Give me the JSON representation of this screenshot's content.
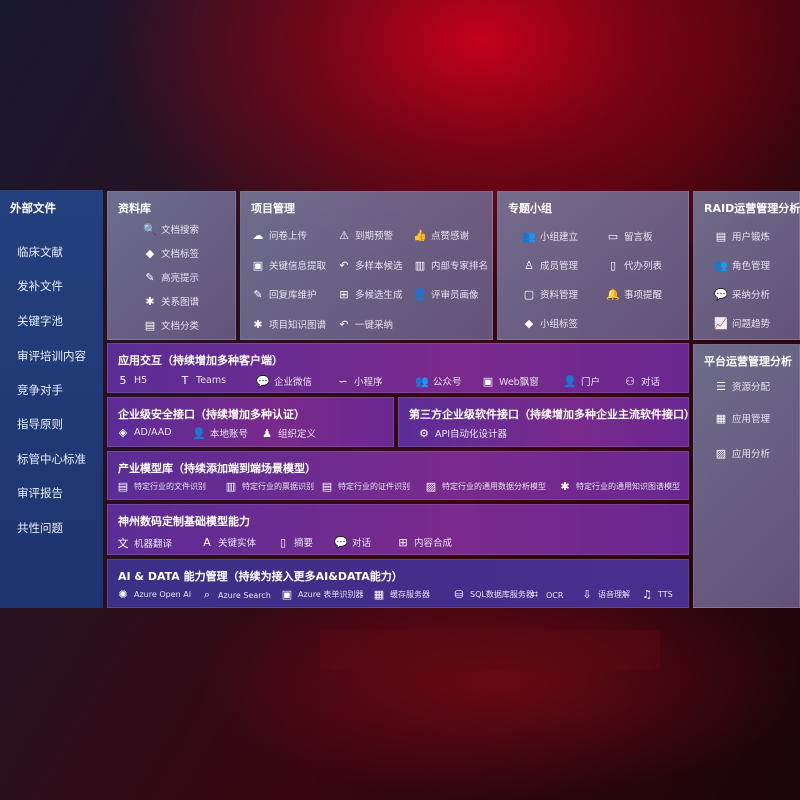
{
  "sidebar": {
    "title": "外部文件",
    "items": [
      "临床文献",
      "发补文件",
      "关键字池",
      "审评培训内容",
      "竞争对手",
      "指导原则",
      "标管中心标准",
      "审评报告",
      "共性问题"
    ]
  },
  "panels": {
    "library": {
      "title": "资料库",
      "items": [
        {
          "label": "文档搜索",
          "icon": "document-search-icon"
        },
        {
          "label": "文档标签",
          "icon": "tag-icon"
        },
        {
          "label": "高亮提示",
          "icon": "pen-icon"
        },
        {
          "label": "关系图谱",
          "icon": "graph-icon"
        },
        {
          "label": "文档分类",
          "icon": "document-category-icon"
        }
      ]
    },
    "project": {
      "title": "项目管理",
      "items": [
        {
          "label": "问卷上传",
          "icon": "cloud-upload-icon"
        },
        {
          "label": "到期预警",
          "icon": "alarm-icon"
        },
        {
          "label": "点赞感谢",
          "icon": "thumbs-up-icon"
        },
        {
          "label": "关键信息提取",
          "icon": "window-icon"
        },
        {
          "label": "多样本候选",
          "icon": "reply-icon"
        },
        {
          "label": "内部专家排名",
          "icon": "ranking-icon"
        },
        {
          "label": "回复库维护",
          "icon": "edit-icon"
        },
        {
          "label": "多候选生成",
          "icon": "puzzle-icon"
        },
        {
          "label": "评审员画像",
          "icon": "user-icon"
        },
        {
          "label": "项目知识图谱",
          "icon": "graph-icon"
        },
        {
          "label": "一键采纳",
          "icon": "reply-icon"
        }
      ]
    },
    "topic": {
      "title": "专题小组",
      "items": [
        {
          "label": "小组建立",
          "icon": "group-icon"
        },
        {
          "label": "留言板",
          "icon": "bbs-icon"
        },
        {
          "label": "成员管理",
          "icon": "user-add-icon"
        },
        {
          "label": "代办列表",
          "icon": "clipboard-icon"
        },
        {
          "label": "资料管理",
          "icon": "folder-icon"
        },
        {
          "label": "事项提醒",
          "icon": "bell-icon"
        },
        {
          "label": "小组标签",
          "icon": "tag-icon"
        }
      ]
    },
    "raid": {
      "title": "RAID运营管理分析",
      "items": [
        {
          "label": "用户锻炼",
          "icon": "id-card-icon"
        },
        {
          "label": "角色管理",
          "icon": "group-icon"
        },
        {
          "label": "采纳分析",
          "icon": "qa-icon"
        },
        {
          "label": "问题趋势",
          "icon": "trend-icon"
        }
      ]
    },
    "platform": {
      "title": "平台运营管理分析",
      "items": [
        {
          "label": "资源分配",
          "icon": "list-icon"
        },
        {
          "label": "应用管理",
          "icon": "apps-icon"
        },
        {
          "label": "应用分析",
          "icon": "chart-icon"
        }
      ]
    },
    "apps": {
      "title": "应用交互（持续增加多种客户端）",
      "items": [
        {
          "label": "H5",
          "icon": "html5-icon"
        },
        {
          "label": "Teams",
          "icon": "teams-icon"
        },
        {
          "label": "企业微信",
          "icon": "wechat-work-icon"
        },
        {
          "label": "小程序",
          "icon": "mini-program-icon"
        },
        {
          "label": "公众号",
          "icon": "group-icon"
        },
        {
          "label": "Web飘窗",
          "icon": "window-icon"
        },
        {
          "label": "门户",
          "icon": "portal-user-icon"
        },
        {
          "label": "对话",
          "icon": "chat-users-icon"
        }
      ]
    },
    "security": {
      "title": "企业级安全接口（持续增加多种认证）",
      "items": [
        {
          "label": "AD/AAD",
          "icon": "diamond-icon"
        },
        {
          "label": "本地账号",
          "icon": "user-icon"
        },
        {
          "label": "组织定义",
          "icon": "organization-icon"
        }
      ]
    },
    "thirdparty": {
      "title": "第三方企业级软件接口（持续增加多种企业主流软件接口）",
      "items": [
        {
          "label": "API自动化设计器",
          "icon": "gear-icon"
        }
      ]
    },
    "industry": {
      "title": "产业模型库（持续添加端到端场景模型）",
      "items": [
        {
          "label": "特定行业的文件识别",
          "icon": "file-icon"
        },
        {
          "label": "特定行业的票据识别",
          "icon": "receipt-icon"
        },
        {
          "label": "特定行业的证件识别",
          "icon": "id-card-icon"
        },
        {
          "label": "特定行业的通用数据分析模型",
          "icon": "chart-icon"
        },
        {
          "label": "特定行业的通用知识图谱模型",
          "icon": "graph-icon"
        }
      ]
    },
    "base": {
      "title": "神州数码定制基础模型能力",
      "items": [
        {
          "label": "机器翻译",
          "icon": "translate-icon"
        },
        {
          "label": "关键实体",
          "icon": "entity-icon"
        },
        {
          "label": "摘要",
          "icon": "document-icon"
        },
        {
          "label": "对话",
          "icon": "chat-icon"
        },
        {
          "label": "内容合成",
          "icon": "puzzle-icon"
        }
      ]
    },
    "aidata": {
      "title": "AI & DATA 能力管理（持续为接入更多AI&DATA能力）",
      "items": [
        {
          "label": "Azure Open AI",
          "icon": "openai-icon"
        },
        {
          "label": "Azure Search",
          "icon": "search-icon"
        },
        {
          "label": "Azure 表单识别器",
          "icon": "form-icon"
        },
        {
          "label": "缓存服务器",
          "icon": "cache-icon"
        },
        {
          "label": "SQL数据库服务器",
          "icon": "database-icon"
        },
        {
          "label": "OCR",
          "icon": "ocr-icon"
        },
        {
          "label": "语音理解",
          "icon": "speech-icon"
        },
        {
          "label": "TTS",
          "icon": "tts-icon"
        }
      ]
    }
  }
}
